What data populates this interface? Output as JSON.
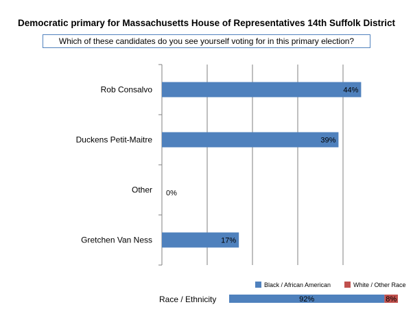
{
  "chart_data": {
    "type": "bar",
    "orientation": "horizontal",
    "title": "Democratic primary  for Massachusetts  House of Representatives 14th  Suffolk District",
    "subtitle": "Which of these candidates do you see yourself voting for in this primary election?",
    "categories": [
      "Rob Consalvo",
      "Duckens Petit-Maitre",
      "Other",
      "Gretchen Van Ness"
    ],
    "values": [
      44,
      39,
      0,
      17
    ],
    "value_labels": [
      "44%",
      "39%",
      "0%",
      "17%"
    ],
    "xlim": [
      0,
      50
    ],
    "grid": true,
    "bar_color": "#4f81bd",
    "demographics": {
      "label": "Race / Ethnicity",
      "legend_position": "above",
      "segments": [
        {
          "name": "Black / African American",
          "value": 92,
          "label": "92%",
          "color": "#4f81bd"
        },
        {
          "name": "White / Other Race",
          "value": 8,
          "label": "8%",
          "color": "#c0504d"
        }
      ]
    }
  }
}
